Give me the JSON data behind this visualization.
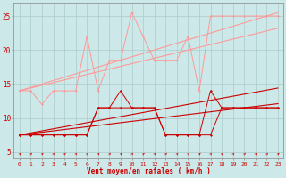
{
  "x": [
    0,
    1,
    2,
    3,
    4,
    5,
    6,
    7,
    8,
    9,
    10,
    11,
    12,
    13,
    14,
    15,
    16,
    17,
    18,
    19,
    20,
    21,
    22,
    23
  ],
  "line_dark1": [
    7.5,
    7.5,
    7.5,
    7.5,
    7.5,
    7.5,
    7.5,
    11.5,
    11.5,
    11.5,
    11.5,
    11.5,
    11.5,
    7.5,
    7.5,
    7.5,
    7.5,
    7.5,
    11.5,
    11.5,
    11.5,
    11.5,
    11.5,
    11.5
  ],
  "line_dark2": [
    7.5,
    7.5,
    7.5,
    7.5,
    7.5,
    7.5,
    7.5,
    11.5,
    11.5,
    14.0,
    11.5,
    11.5,
    11.5,
    7.5,
    7.5,
    7.5,
    7.5,
    14.0,
    11.5,
    11.5,
    11.5,
    11.5,
    11.5,
    11.5
  ],
  "trend_dark1": [
    7.5,
    7.7,
    7.9,
    8.1,
    8.3,
    8.5,
    8.7,
    8.9,
    9.1,
    9.3,
    9.5,
    9.7,
    9.9,
    10.1,
    10.3,
    10.5,
    10.7,
    10.9,
    11.1,
    11.3,
    11.5,
    11.7,
    11.9,
    12.1
  ],
  "trend_dark2": [
    7.5,
    7.8,
    8.1,
    8.4,
    8.7,
    9.0,
    9.3,
    9.6,
    9.9,
    10.2,
    10.5,
    10.8,
    11.1,
    11.4,
    11.7,
    12.0,
    12.3,
    12.6,
    12.9,
    13.2,
    13.5,
    13.8,
    14.1,
    14.4
  ],
  "line_light1": [
    14.0,
    14.0,
    12.0,
    14.0,
    14.0,
    14.0,
    22.0,
    14.0,
    18.5,
    18.5,
    25.5,
    22.0,
    18.5,
    18.5,
    18.5,
    22.0,
    14.0,
    25.0,
    25.0,
    25.0,
    25.0,
    25.0,
    25.0,
    25.0
  ],
  "trend_light1": [
    14.0,
    14.4,
    14.8,
    15.2,
    15.6,
    16.0,
    16.4,
    16.8,
    17.2,
    17.6,
    18.0,
    18.4,
    18.8,
    19.2,
    19.6,
    20.0,
    20.4,
    20.8,
    21.2,
    21.6,
    22.0,
    22.4,
    22.8,
    23.2
  ],
  "trend_light2": [
    14.0,
    14.5,
    15.0,
    15.5,
    16.0,
    16.5,
    17.0,
    17.5,
    18.0,
    18.5,
    19.0,
    19.5,
    20.0,
    20.5,
    21.0,
    21.5,
    22.0,
    22.5,
    23.0,
    23.5,
    24.0,
    24.5,
    25.0,
    25.5
  ],
  "bg_color": "#cce8e8",
  "grid_color": "#aacccc",
  "line_color_dark": "#cc0000",
  "line_color_light": "#ff9999",
  "xlabel": "Vent moyen/en rafales ( km/h )",
  "yticks": [
    5,
    10,
    15,
    20,
    25
  ],
  "xtick_labels": [
    "0",
    "",
    "2",
    "3",
    "4",
    "5",
    "6",
    "7",
    "8",
    "9",
    "10",
    "11",
    "12",
    "13",
    "14",
    "15",
    "16",
    "17",
    "18",
    "19",
    "20",
    "21",
    "2223"
  ],
  "ylim": [
    4.0,
    27.0
  ],
  "xlim": [
    -0.5,
    23.5
  ]
}
